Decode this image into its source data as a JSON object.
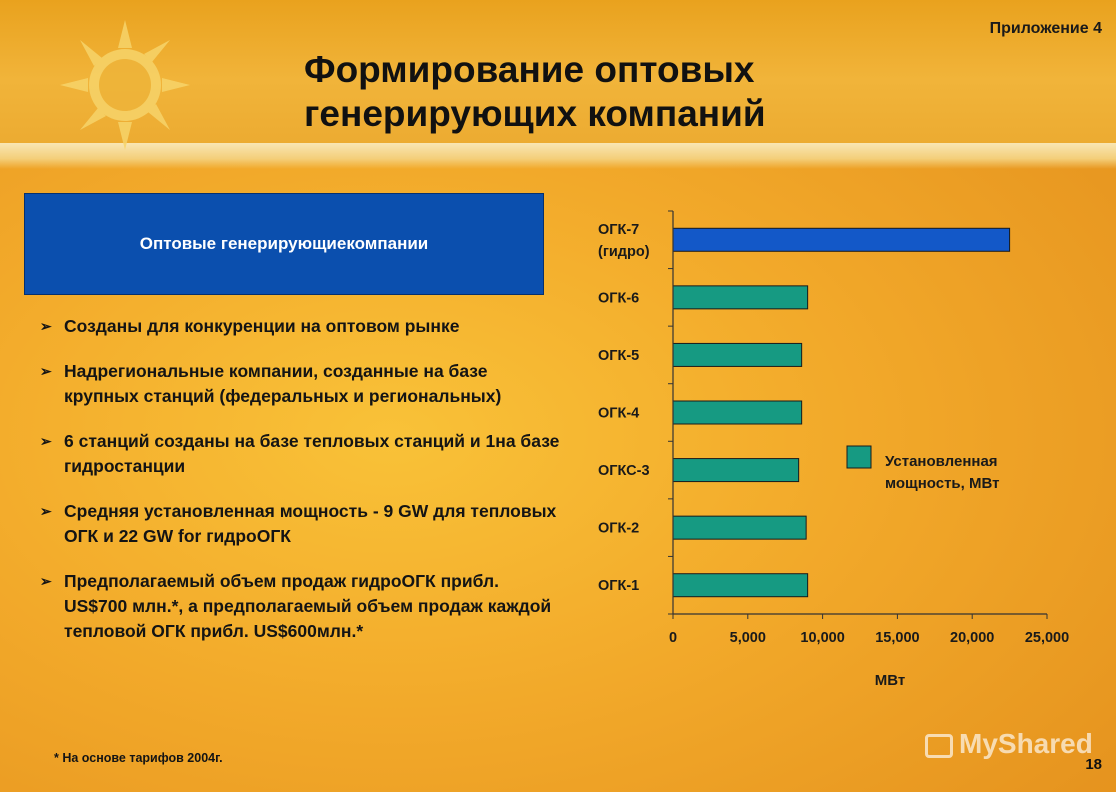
{
  "header": {
    "appendix_label": "Приложение 4",
    "title_line1": "Формирование оптовых",
    "title_line2": "генерирующих компаний"
  },
  "logo": {
    "icon": "sun-logo-icon"
  },
  "blue_box": {
    "label": "Оптовые генерирующиекомпании"
  },
  "bullets": [
    "Созданы для конкуренции на оптовом рынке",
    "Надрегиональные компании, созданные на базе крупных станций (федеральных и региональных)",
    "6 станций созданы на базе тепловых станций и 1на базе гидростанции",
    "Средняя установленная мощность - 9 GW для тепловых ОГК и 22 GW for гидроОГК",
    "Предполагаемый объем продаж гидроОГК прибл. US$700 млн.*, а предполагаемый объем продаж каждой тепловой ОГК прибл. US$600млн.*"
  ],
  "footnote": "* На основе тарифов 2004г.",
  "page_number": "18",
  "watermark": "MyShared",
  "colors": {
    "hydro_bar": "#1358c8",
    "thermal_bar": "#169a82",
    "title_box": "#0b4fae"
  },
  "chart_data": {
    "type": "bar",
    "orientation": "horizontal",
    "categories": [
      "ОГК-7 (гидро)",
      "ОГК-6",
      "ОГК-5",
      "ОГК-4",
      "ОГКС-3",
      "ОГК-2",
      "ОГК-1"
    ],
    "category_lines": [
      [
        "ОГК-7",
        "(гидро)"
      ],
      [
        "ОГК-6"
      ],
      [
        "ОГК-5"
      ],
      [
        "ОГК-4"
      ],
      [
        "ОГКС-3"
      ],
      [
        "ОГК-2"
      ],
      [
        "ОГК-1"
      ]
    ],
    "series": [
      {
        "name": "Установленная мощность, МВт",
        "values": [
          22500,
          9000,
          8600,
          8600,
          8400,
          8900,
          9000
        ]
      }
    ],
    "legend_lines": [
      "Установленная",
      " мощность, МВт"
    ],
    "xlabel": "МВт",
    "xlim": [
      0,
      25000
    ],
    "xticks": [
      0,
      5000,
      10000,
      15000,
      20000,
      25000
    ],
    "xtick_labels": [
      "0",
      "5,000",
      "10,000",
      "15,000",
      "20,000",
      "25,000"
    ],
    "grid": false,
    "legend_position": "right"
  }
}
